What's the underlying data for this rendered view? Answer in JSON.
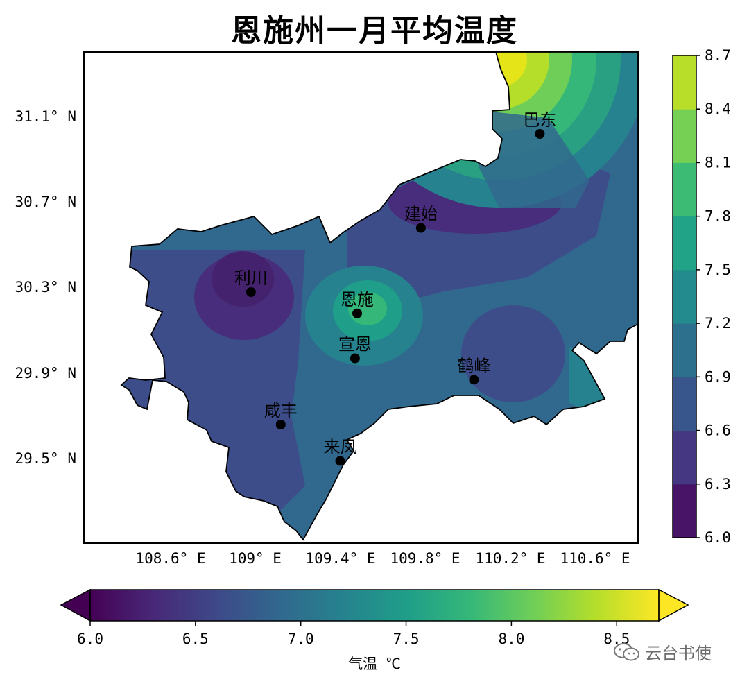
{
  "title": "恩施州一月平均温度",
  "map": {
    "x_ticks": [
      "108.6° E",
      "109° E",
      "109.4° E",
      "109.8° E",
      "110.2° E",
      "110.6° E"
    ],
    "y_ticks": [
      "31.1° N",
      "30.7° N",
      "30.3° N",
      "29.9° N",
      "29.5° N"
    ],
    "cities": [
      {
        "name": "巴东",
        "lon": 110.34,
        "lat": 31.04
      },
      {
        "name": "建始",
        "lon": 109.78,
        "lat": 30.6
      },
      {
        "name": "利川",
        "lon": 108.98,
        "lat": 30.3
      },
      {
        "name": "恩施",
        "lon": 109.48,
        "lat": 30.2
      },
      {
        "name": "宣恩",
        "lon": 109.47,
        "lat": 29.99
      },
      {
        "name": "鹤峰",
        "lon": 110.03,
        "lat": 29.89
      },
      {
        "name": "咸丰",
        "lon": 109.12,
        "lat": 29.68
      },
      {
        "name": "来凤",
        "lon": 109.4,
        "lat": 29.51
      }
    ]
  },
  "right_colorbar": {
    "levels": [
      "6.0",
      "6.3",
      "6.6",
      "6.9",
      "7.2",
      "7.5",
      "7.8",
      "8.1",
      "8.4",
      "8.7"
    ],
    "colors": [
      "#481467",
      "#453781",
      "#39568c",
      "#2d708e",
      "#238a8d",
      "#20a386",
      "#3cbb75",
      "#75d054",
      "#b8de29",
      "#e4e419"
    ]
  },
  "bottom_colorbar": {
    "ticks": [
      "6.0",
      "6.5",
      "7.0",
      "7.5",
      "8.0",
      "8.5"
    ],
    "label": "气温 ℃",
    "cmap": "viridis"
  },
  "legend_colors": {
    "deep": "#3b2c78",
    "low": "#3d4d8a",
    "mid": "#2f6b8e",
    "high": "#24888d",
    "warm": "#2aa083",
    "hot": "#5ec962"
  },
  "watermark": "云台书使"
}
